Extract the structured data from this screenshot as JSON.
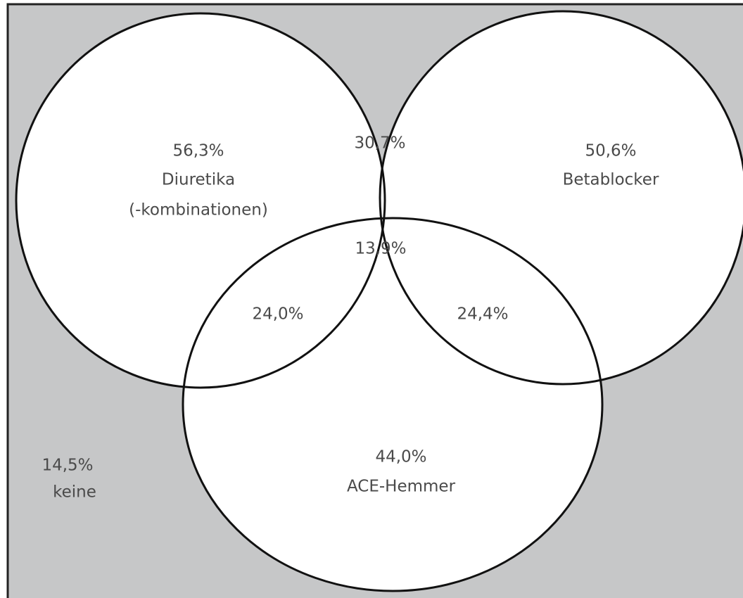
{
  "sets": [
    {
      "value": "56,3%",
      "label": "Diuretika",
      "sublabel": "(-kombinationen)"
    },
    {
      "value": "50,6%",
      "label": "Betablocker"
    },
    {
      "value": "44,0%",
      "label": "ACE-Hemmer"
    }
  ],
  "overlaps": [
    "30,7%",
    "24,0%",
    "24,4%",
    "13,9%"
  ],
  "outside": {
    "value": "14,5%",
    "label": "keine"
  }
}
